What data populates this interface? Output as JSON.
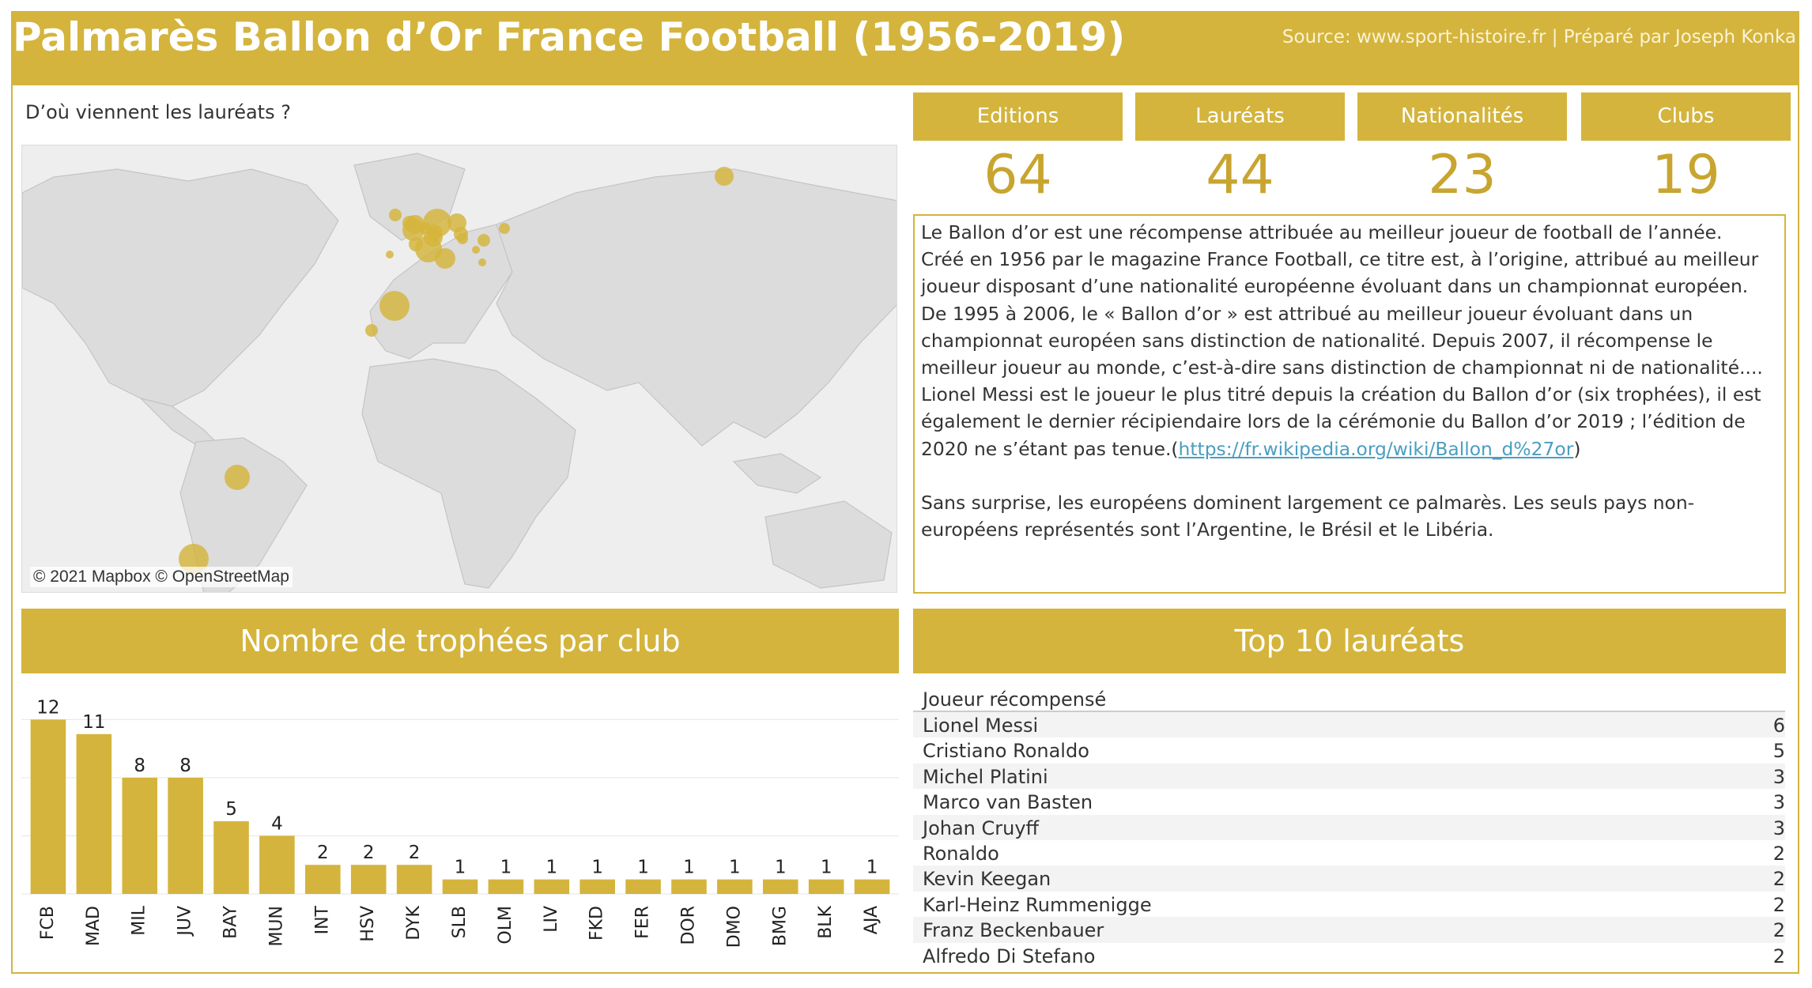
{
  "header": {
    "title": "Palmarès Ballon d’Or France Football (1956-2019)",
    "source": "Source: www.sport-histoire.fr | Préparé par Joseph Konka"
  },
  "map": {
    "question": "D’où viennent les lauréats ?",
    "credit": "© 2021 Mapbox © OpenStreetMap",
    "bubble_color": "#d4b43c"
  },
  "kpis": [
    {
      "label": "Editions",
      "value": "64"
    },
    {
      "label": "Lauréats",
      "value": "44"
    },
    {
      "label": "Nationalités",
      "value": "23"
    },
    {
      "label": "Clubs",
      "value": "19"
    }
  ],
  "description": {
    "p1": "Le Ballon d’or est une récompense attribuée au meilleur joueur de football de l’année.",
    "p2": "Créé en 1956 par le magazine France Football, ce titre est, à l’origine, attribué au meilleur joueur disposant d’une nationalité européenne évoluant dans un championnat européen. De 1995 à 2006, le « Ballon d’or » est attribué au meilleur joueur évoluant dans un championnat européen sans distinction de nationalité. Depuis 2007, il récompense le meilleur joueur au monde, c’est-à-dire sans distinction de championnat ni de nationalité....",
    "p3": "Lionel Messi est le joueur le plus titré depuis la création du Ballon d’or (six trophées), il est également le dernier récipiendaire lors de la cérémonie du Ballon d’or 2019 ; l’édition de 2020 ne s’étant pas tenue.(",
    "link": "https://fr.wikipedia.org/wiki/Ballon_d%27or",
    "p3_end": ")",
    "p4": "Sans surprise, les européens dominent largement ce palmarès. Les seuls pays non-européens représentés sont l’Argentine, le Brésil et le Libéria."
  },
  "clubs_title": "Nombre de trophées par club",
  "top10": {
    "title": "Top 10 lauréats",
    "column": "Joueur récompensé",
    "rows": [
      {
        "name": "Lionel Messi",
        "count": "6"
      },
      {
        "name": "Cristiano Ronaldo",
        "count": "5"
      },
      {
        "name": "Michel Platini",
        "count": "3"
      },
      {
        "name": "Marco van Basten",
        "count": "3"
      },
      {
        "name": "Johan Cruyff",
        "count": "3"
      },
      {
        "name": "Ronaldo",
        "count": "2"
      },
      {
        "name": "Kevin Keegan",
        "count": "2"
      },
      {
        "name": "Karl-Heinz Rummenigge",
        "count": "2"
      },
      {
        "name": "Franz Beckenbauer",
        "count": "2"
      },
      {
        "name": "Alfredo Di Stefano",
        "count": "2"
      }
    ]
  },
  "chart_data": {
    "type": "bar",
    "title": "Nombre de trophées par club",
    "categories": [
      "FCB",
      "MAD",
      "MIL",
      "JUV",
      "BAY",
      "MUN",
      "INT",
      "HSV",
      "DYK",
      "SLB",
      "OLM",
      "LIV",
      "FKD",
      "FER",
      "DOR",
      "DMO",
      "BMG",
      "BLK",
      "AJA"
    ],
    "values": [
      12,
      11,
      8,
      8,
      5,
      4,
      2,
      2,
      2,
      1,
      1,
      1,
      1,
      1,
      1,
      1,
      1,
      1,
      1
    ],
    "ylim": [
      0,
      13
    ],
    "grid": true,
    "color": "#d4b43c"
  }
}
